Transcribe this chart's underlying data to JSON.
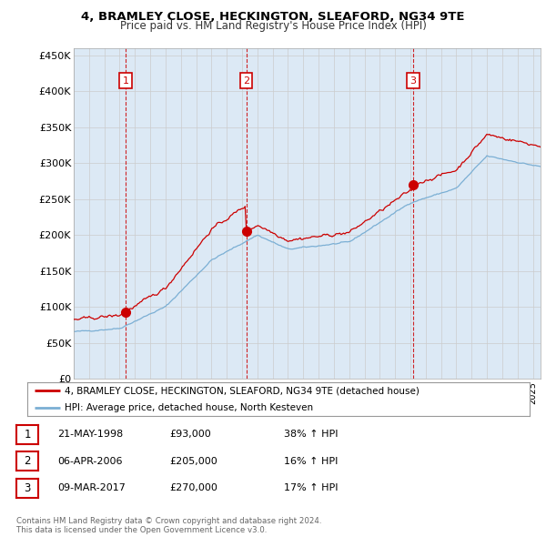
{
  "title": "4, BRAMLEY CLOSE, HECKINGTON, SLEAFORD, NG34 9TE",
  "subtitle": "Price paid vs. HM Land Registry's House Price Index (HPI)",
  "ylabel_ticks": [
    "£0",
    "£50K",
    "£100K",
    "£150K",
    "£200K",
    "£250K",
    "£300K",
    "£350K",
    "£400K",
    "£450K"
  ],
  "ytick_values": [
    0,
    50000,
    100000,
    150000,
    200000,
    250000,
    300000,
    350000,
    400000,
    450000
  ],
  "ylim": [
    0,
    460000
  ],
  "xlim_start": 1995.0,
  "xlim_end": 2025.5,
  "sale_dates": [
    1998.38,
    2006.27,
    2017.18
  ],
  "sale_prices": [
    93000,
    205000,
    270000
  ],
  "sale_labels": [
    "1",
    "2",
    "3"
  ],
  "legend_red": "4, BRAMLEY CLOSE, HECKINGTON, SLEAFORD, NG34 9TE (detached house)",
  "legend_blue": "HPI: Average price, detached house, North Kesteven",
  "table_rows": [
    [
      "1",
      "21-MAY-1998",
      "£93,000",
      "38% ↑ HPI"
    ],
    [
      "2",
      "06-APR-2006",
      "£205,000",
      "16% ↑ HPI"
    ],
    [
      "3",
      "09-MAR-2017",
      "£270,000",
      "17% ↑ HPI"
    ]
  ],
  "footer": "Contains HM Land Registry data © Crown copyright and database right 2024.\nThis data is licensed under the Open Government Licence v3.0.",
  "grid_color": "#cccccc",
  "plot_bg_color": "#dce9f5",
  "vline_color": "#cc0000",
  "red_line_color": "#cc0000",
  "blue_line_color": "#7bafd4",
  "background_color": "#ffffff",
  "label_box_color": "#cc0000"
}
